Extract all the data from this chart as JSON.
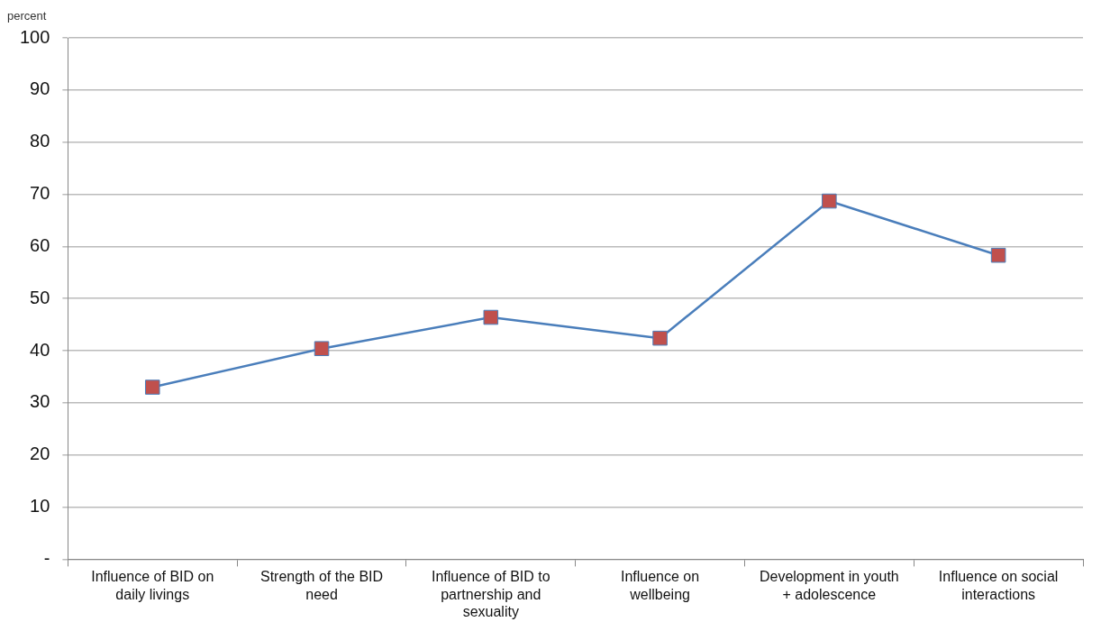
{
  "chart_data": {
    "type": "line",
    "ylabel": "percent",
    "categories": [
      "Influence of BID on daily livings",
      "Strength of the BID need",
      "Influence of BID to partnership and sexuality",
      "Influence on wellbeing",
      "Development in youth + adolescence",
      "Influence on social interactions"
    ],
    "series": [
      {
        "color": "#4a7ebb",
        "values": [
          33.0,
          40.4,
          46.4,
          42.4,
          68.7,
          58.3
        ]
      }
    ],
    "marker": "square",
    "ylim": [
      0,
      100
    ],
    "yticks": [
      {
        "value": 0,
        "label": "-"
      },
      10,
      20,
      30,
      40,
      50,
      60,
      70,
      80,
      90,
      100
    ],
    "grid": "y",
    "legend": false
  }
}
